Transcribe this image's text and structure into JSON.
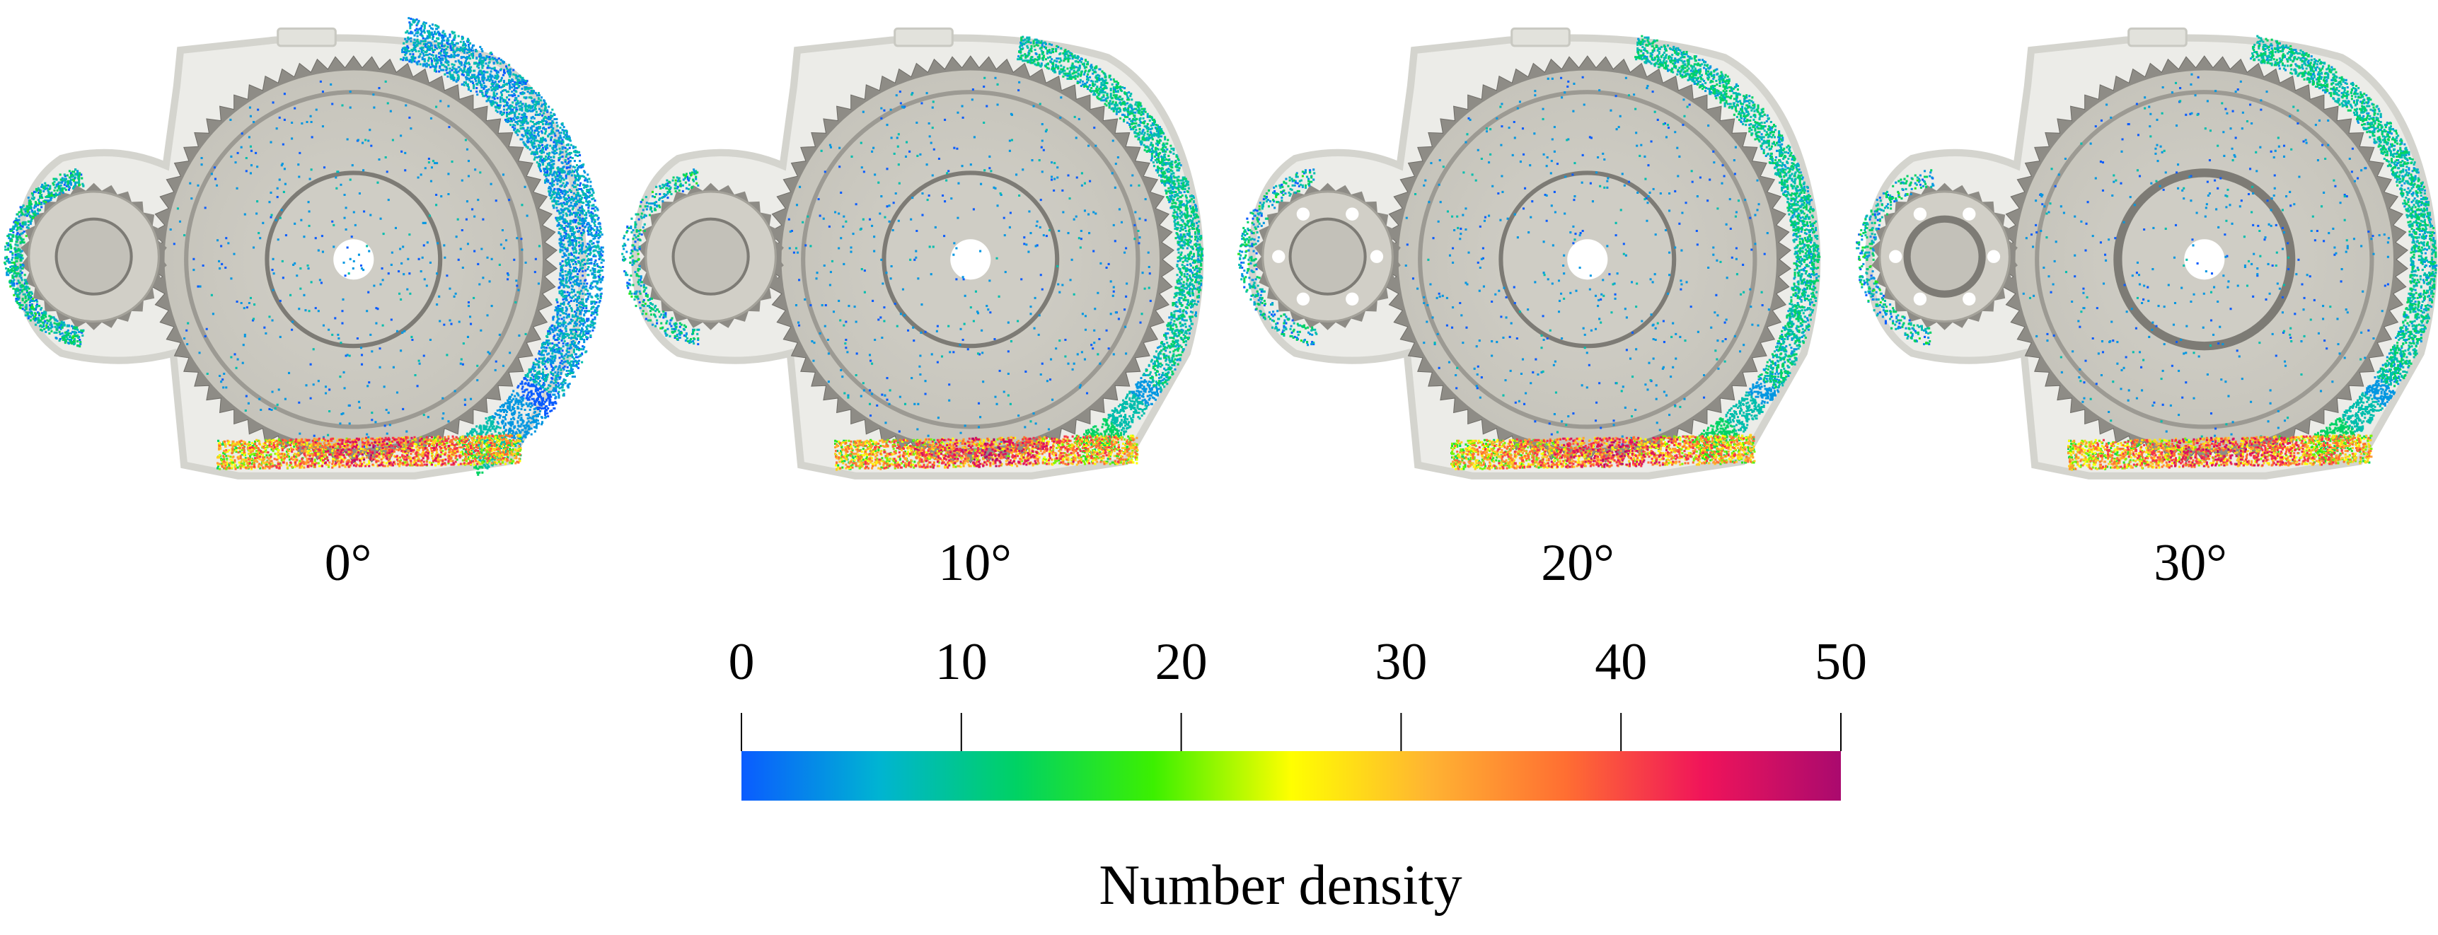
{
  "panels": [
    {
      "angle_label": "0°"
    },
    {
      "angle_label": "10°"
    },
    {
      "angle_label": "20°"
    },
    {
      "angle_label": "30°"
    }
  ],
  "colorbar": {
    "title": "Number density",
    "min": 0,
    "max": 50,
    "ticks": [
      "0",
      "10",
      "20",
      "30",
      "40",
      "50"
    ],
    "colors": [
      "#0a5cff",
      "#00b4d2",
      "#00d264",
      "#3cf000",
      "#ffff00",
      "#ffb432",
      "#ff6e32",
      "#f0145a",
      "#aa0a6e"
    ]
  }
}
